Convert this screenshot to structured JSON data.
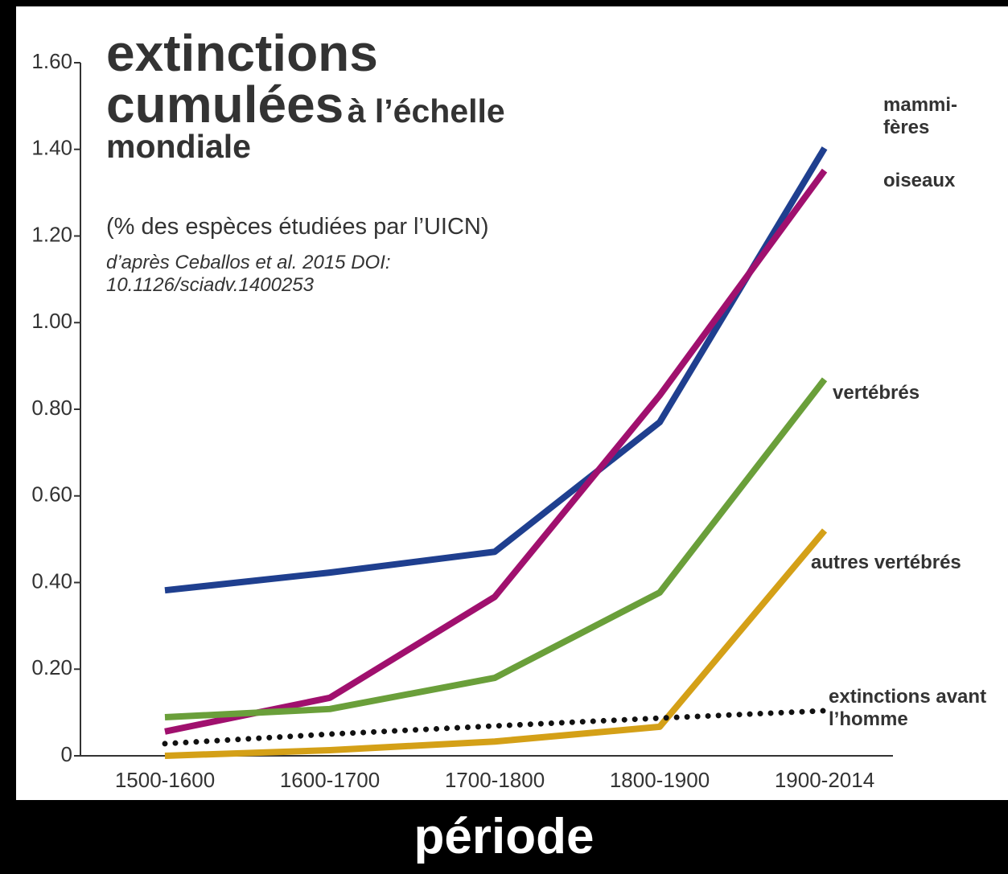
{
  "chart_data": {
    "type": "line",
    "title": [
      "extinctions cumulées",
      "à l’échelle mondiale"
    ],
    "subtitle": "(% des espèces étudiées par l’UICN)",
    "source": "d’après Ceballos et al. 2015 DOI: 10.1126/sciadv.1400253",
    "x_label": "période",
    "categories": [
      "1500-1600",
      "1600-1700",
      "1700-1800",
      "1800-1900",
      "1900-2014"
    ],
    "series": [
      {
        "name": "mammi-fères",
        "color": "#1f3f8f",
        "values": [
          0.382,
          0.423,
          0.471,
          0.77,
          1.403
        ]
      },
      {
        "name": "oiseaux",
        "color": "#a0106e",
        "values": [
          0.056,
          0.134,
          0.367,
          0.832,
          1.351
        ]
      },
      {
        "name": "vertébrés",
        "color": "#6a9f3a",
        "values": [
          0.089,
          0.108,
          0.18,
          0.377,
          0.869
        ]
      },
      {
        "name": "autres vertébrés",
        "color": "#d4a017",
        "values": [
          0,
          0.013,
          0.033,
          0.067,
          0.52
        ]
      },
      {
        "name": "extinctions avant l’homme",
        "color": "#111111",
        "dotted": true,
        "values": [
          0.028,
          0.05,
          0.069,
          0.087,
          0.104
        ]
      }
    ],
    "ylim": [
      0,
      1.6
    ],
    "yticks": [
      0,
      {
        "value": 0.2,
        "label": "0.20"
      },
      {
        "value": 0.4,
        "label": "0.40"
      },
      {
        "value": 0.6,
        "label": "0.60"
      },
      {
        "value": 0.8,
        "label": "0.80"
      },
      {
        "value": 1.0,
        "label": "1.00"
      },
      {
        "value": 1.2,
        "label": "1.20"
      },
      {
        "value": 1.4,
        "label": "1.40"
      },
      {
        "value": 1.6,
        "label": "1.60"
      }
    ]
  }
}
